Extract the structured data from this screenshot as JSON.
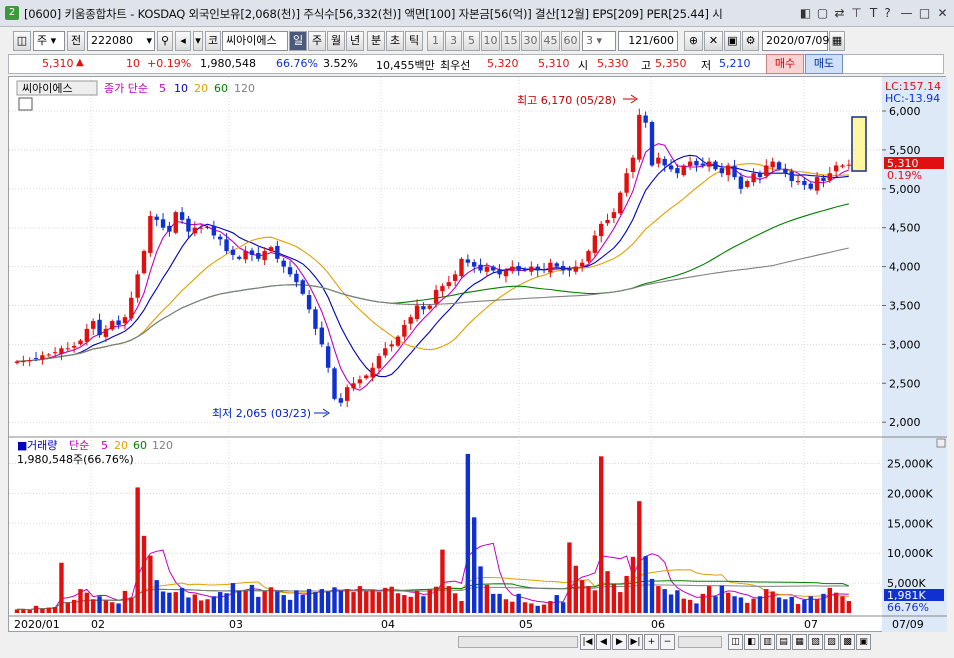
{
  "window": {
    "app_badge": "2",
    "title": "[0600] 키움종합차트 - KOSDAQ 외국인보유[2,068(천)] 주식수[56,332(천)] 액면[100] 자본금[56(억)] 결산[12월] EPS[209] PER[25.44] 시"
  },
  "toolbar": {
    "market": "주",
    "period_label": "전",
    "code": "222080",
    "name_btn": "코",
    "stock_name": "씨아이에스",
    "intervals": [
      "일",
      "주",
      "월",
      "년",
      "분",
      "초",
      "틱"
    ],
    "selected_interval": "일",
    "numbers": [
      "1",
      "3",
      "5",
      "10",
      "15",
      "30",
      "45",
      "60"
    ],
    "count_value": "3",
    "page_counter": "121/600",
    "date_value": "2020/07/09"
  },
  "quote": {
    "price": "5,310",
    "change_arrow": "▲",
    "change": "10",
    "change_pct": "+0.19%",
    "volume": "1,980,548",
    "turnover_pct": "66.76%",
    "change_pct2": "3.52%",
    "amount": "10,455백만",
    "priority": "최우선",
    "ask": "5,320",
    "bid": "5,310",
    "open_label": "시",
    "open": "5,330",
    "high_label": "고",
    "high": "5,350",
    "low_label": "저",
    "low": "5,210",
    "buy": "매수",
    "sell": "매도"
  },
  "price_chart": {
    "stock_label": "씨아이에스",
    "ma_label": "종가 단순",
    "ma_periods": [
      "5",
      "10",
      "20",
      "60",
      "120"
    ],
    "ma_colors": [
      "#c000c0",
      "#0000c0",
      "#e0a000",
      "#008000",
      "#808080"
    ],
    "lc": "LC:157.14",
    "hc": "HC:-13.94",
    "high_note": "최고 6,170 (05/28)",
    "low_note": "최저 2,065 (03/23)",
    "current_price": "5,310",
    "current_pct": "0.19%",
    "y_ticks": [
      "6,000",
      "5,500",
      "5,000",
      "4,500",
      "4,000",
      "3,500",
      "3,000",
      "2,500",
      "2,000"
    ]
  },
  "volume_chart": {
    "title": "거래량",
    "ma_label": "단순",
    "ma_periods": [
      "5",
      "20",
      "60",
      "120"
    ],
    "ma_colors": [
      "#c000c0",
      "#e0a000",
      "#008000",
      "#808080"
    ],
    "current_info": "1,980,548주(66.76%)",
    "current_vol": "1,981K",
    "current_pct": "66.76%",
    "y_ticks": [
      "25,000K",
      "20,000K",
      "15,000K",
      "10,000K",
      "5,000K"
    ]
  },
  "x_axis": {
    "labels": [
      "2020/01",
      "02",
      "03",
      "04",
      "05",
      "06",
      "07",
      "07/09"
    ]
  },
  "chart_data": {
    "type": "candlestick",
    "x_range": [
      "2020/01",
      "2020/07/09"
    ],
    "ylim": [
      2000,
      6200
    ],
    "volume_ylim": [
      0,
      27000000
    ],
    "closes": [
      2780,
      2790,
      2800,
      2820,
      2860,
      2870,
      2900,
      2950,
      2950,
      2980,
      3050,
      3200,
      3300,
      3120,
      3200,
      3300,
      3250,
      3350,
      3600,
      3900,
      4200,
      4650,
      4600,
      4500,
      4450,
      4700,
      4600,
      4450,
      4500,
      4500,
      4500,
      4400,
      4350,
      4200,
      4150,
      4100,
      4200,
      4150,
      4100,
      4200,
      4250,
      4100,
      4000,
      3900,
      3800,
      3650,
      3450,
      3200,
      3000,
      2700,
      2300,
      2250,
      2450,
      2500,
      2550,
      2600,
      2700,
      2850,
      2950,
      3000,
      3100,
      3250,
      3350,
      3500,
      3450,
      3500,
      3700,
      3750,
      3800,
      3900,
      4100,
      4050,
      4000,
      3950,
      4000,
      3950,
      3900,
      3950,
      4000,
      3950,
      3950,
      4000,
      3950,
      3950,
      4050,
      4000,
      3950,
      3950,
      4000,
      4050,
      4200,
      4400,
      4550,
      4600,
      4700,
      4950,
      5200,
      5400,
      5950,
      5850,
      5300,
      5400,
      5300,
      5250,
      5200,
      5300,
      5350,
      5300,
      5300,
      5350,
      5250,
      5200,
      5300,
      5150,
      5000,
      5100,
      5200,
      5150,
      5300,
      5350,
      5250,
      5200,
      5100,
      5100,
      5050,
      5000,
      5150,
      5100,
      5200,
      5300,
      5300,
      5310
    ],
    "volumes": [
      600000,
      600000,
      500000,
      1200000,
      700000,
      900000,
      1000000,
      8400000,
      1700000,
      2200000,
      4000000,
      3400000,
      2300000,
      2800000,
      2100000,
      1800000,
      1600000,
      3700000,
      2600000,
      21000000,
      12900000,
      9600000,
      5500000,
      3600000,
      3400000,
      3500000,
      4200000,
      2600000,
      3100000,
      2100000,
      2300000,
      2800000,
      3500000,
      3300000,
      5000000,
      3700000,
      3700000,
      4700000,
      2700000,
      3600000,
      4300000,
      3600000,
      3000000,
      2200000,
      3800000,
      3000000,
      4000000,
      3500000,
      4000000,
      3600000,
      4300000,
      3700000,
      4000000,
      3500000,
      4500000,
      3600000,
      3800000,
      3500000,
      4200000,
      4400000,
      3300000,
      3000000,
      2700000,
      3700000,
      2800000,
      3900000,
      4400000,
      10600000,
      4500000,
      3300000,
      2000000,
      26600000,
      16000000,
      7800000,
      4700000,
      3200000,
      3200000,
      2300000,
      1900000,
      3200000,
      1800000,
      1600000,
      1200000,
      1400000,
      2000000,
      3000000,
      1800000,
      11800000,
      7900000,
      5500000,
      4500000,
      3800000,
      26200000,
      7000000,
      4800000,
      3500000,
      6200000,
      9400000,
      18700000,
      9500000,
      5700000,
      4500000,
      4000000,
      3100000,
      3800000,
      2400000,
      2200000,
      1600000,
      3200000,
      4500000,
      2800000,
      4600000,
      3400000,
      2800000,
      2600000,
      1700000,
      2400000,
      2800000,
      4000000,
      3600000,
      2600000,
      2300000,
      2700000,
      1500000,
      2200000,
      2800000,
      2300000,
      3200000,
      4200000,
      3400000,
      2800000,
      2000000
    ]
  }
}
